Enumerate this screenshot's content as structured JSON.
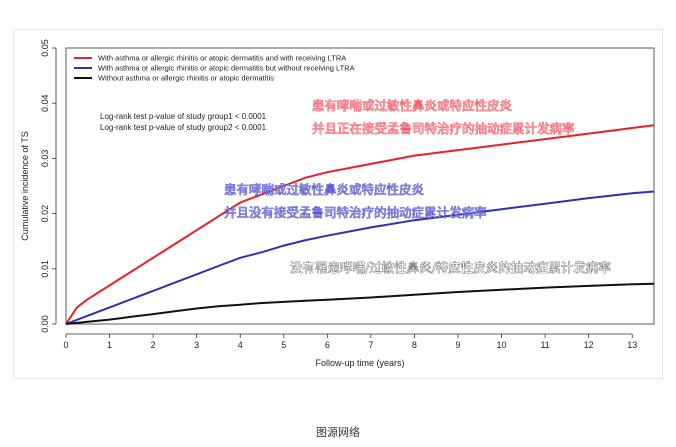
{
  "chart_data": {
    "type": "line",
    "title": "",
    "xlabel": "Follow-up time (years)",
    "ylabel": "Cumulative incidence of TS",
    "xlim": [
      0,
      13.5
    ],
    "ylim": [
      0,
      0.05
    ],
    "x_ticks": [
      0,
      1,
      2,
      3,
      4,
      5,
      6,
      7,
      8,
      9,
      10,
      11,
      12,
      13
    ],
    "x_tick_labels": [
      "0",
      "1",
      "2",
      "3",
      "4",
      "5",
      "6",
      "7",
      "8",
      "9",
      "10",
      "11",
      "12",
      "13"
    ],
    "y_ticks": [
      0,
      0.01,
      0.02,
      0.03,
      0.04,
      0.05
    ],
    "y_tick_labels": [
      "0.00",
      "0.01",
      "0.02",
      "0.03",
      "0.04",
      "0.05"
    ],
    "grid": false,
    "legend_position": "top-left",
    "series": [
      {
        "name": "With asthma or allergic rhinitis or atopic dermatitis and with receiving LTRA",
        "color": "#e8202a",
        "x": [
          0,
          0.25,
          0.5,
          1,
          1.5,
          2,
          2.5,
          3,
          3.5,
          4,
          4.5,
          5,
          5.5,
          6,
          7,
          8,
          9,
          10,
          11,
          12,
          13,
          13.5
        ],
        "values": [
          0,
          0.003,
          0.0045,
          0.007,
          0.0095,
          0.012,
          0.0145,
          0.017,
          0.0195,
          0.022,
          0.0235,
          0.025,
          0.0265,
          0.0275,
          0.029,
          0.0305,
          0.0315,
          0.0325,
          0.0335,
          0.0345,
          0.0355,
          0.036
        ]
      },
      {
        "name": "With asthma or allergic rhinitis or atopic dermatitis but without receiving LTRA",
        "color": "#2f2fb8",
        "x": [
          0,
          0.5,
          1,
          1.5,
          2,
          2.5,
          3,
          3.5,
          4,
          4.5,
          5,
          5.5,
          6,
          7,
          8,
          9,
          10,
          11,
          12,
          13,
          13.5
        ],
        "values": [
          0,
          0.0015,
          0.003,
          0.0045,
          0.006,
          0.0075,
          0.009,
          0.0105,
          0.012,
          0.013,
          0.0142,
          0.0152,
          0.016,
          0.0175,
          0.0188,
          0.0198,
          0.0208,
          0.0218,
          0.0228,
          0.0237,
          0.024
        ]
      },
      {
        "name": "Without asthma or allergic rhinitis or atopic dermatitis",
        "color": "#111111",
        "x": [
          0,
          0.5,
          1,
          1.5,
          2,
          2.5,
          3,
          3.5,
          4,
          4.5,
          5,
          5.5,
          6,
          7,
          8,
          9,
          10,
          11,
          12,
          13,
          13.5
        ],
        "values": [
          0,
          0.0004,
          0.0008,
          0.0013,
          0.0018,
          0.0023,
          0.0028,
          0.0032,
          0.0035,
          0.0038,
          0.004,
          0.0042,
          0.0044,
          0.0048,
          0.0053,
          0.0058,
          0.0062,
          0.0066,
          0.0069,
          0.0072,
          0.0073
        ]
      }
    ],
    "pvalue_lines": [
      "Log-rank test p-value of study group1 < 0.0001",
      "Log-rank test p-value of study group2 < 0.0001"
    ],
    "annotations": [
      {
        "text": "患有哮喘或过敏性鼻炎或特应性皮炎",
        "color": "#ff9ea8",
        "stroke": "#e8202a"
      },
      {
        "text": "并且正在接受孟鲁司特治疗的抽动症累计发病率",
        "color": "#ff9ea8",
        "stroke": "#e8202a"
      },
      {
        "text": "患有哮喘或过敏性鼻炎或特应性皮炎",
        "color": "#8a8ae6",
        "stroke": "#2f2fb8"
      },
      {
        "text": "并且没有接受孟鲁司特治疗的抽动症累计发病率",
        "color": "#8a8ae6",
        "stroke": "#2f2fb8"
      },
      {
        "text": "没有罹患哮喘/过敏性鼻炎/特应性皮炎的抽动症累计发病率",
        "color": "#ffffff",
        "stroke": "#111111"
      }
    ]
  },
  "caption": "图源网络"
}
